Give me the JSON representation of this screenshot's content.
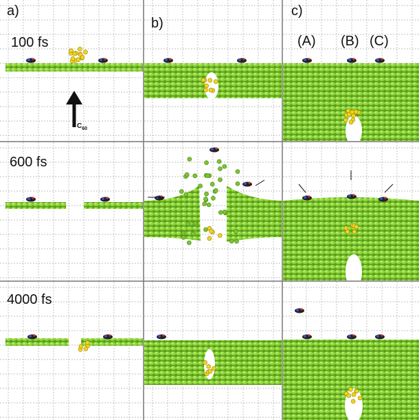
{
  "panels": {
    "labels": [
      "a)",
      "b)",
      "c)"
    ]
  },
  "times": [
    "100 fs",
    "600 fs",
    "4000 fs"
  ],
  "sites": [
    "(A)",
    "(B)",
    "(C)"
  ],
  "projectile": {
    "base": "C",
    "sub": "60"
  }
}
